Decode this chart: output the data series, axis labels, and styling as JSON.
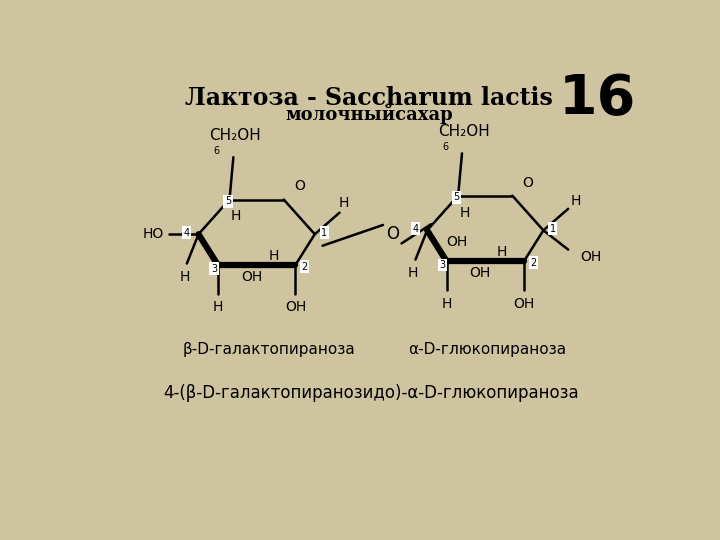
{
  "title_line1": "Лактоза - Saccharum lactis",
  "title_line2": "молочныйсахар",
  "slide_number": "16",
  "label_galacto": "β-D-галактопираноза",
  "label_gluco": "α-D-глюкопираноза",
  "label_full": "4-(β-D-галактопиранозидо)-α-D-глюкопираноза",
  "bg_color": "#cfc4a0",
  "title_fontsize": 17,
  "subtitle_fontsize": 13,
  "label_fontsize": 11,
  "number_fontsize": 40,
  "struct_fontsize": 10
}
